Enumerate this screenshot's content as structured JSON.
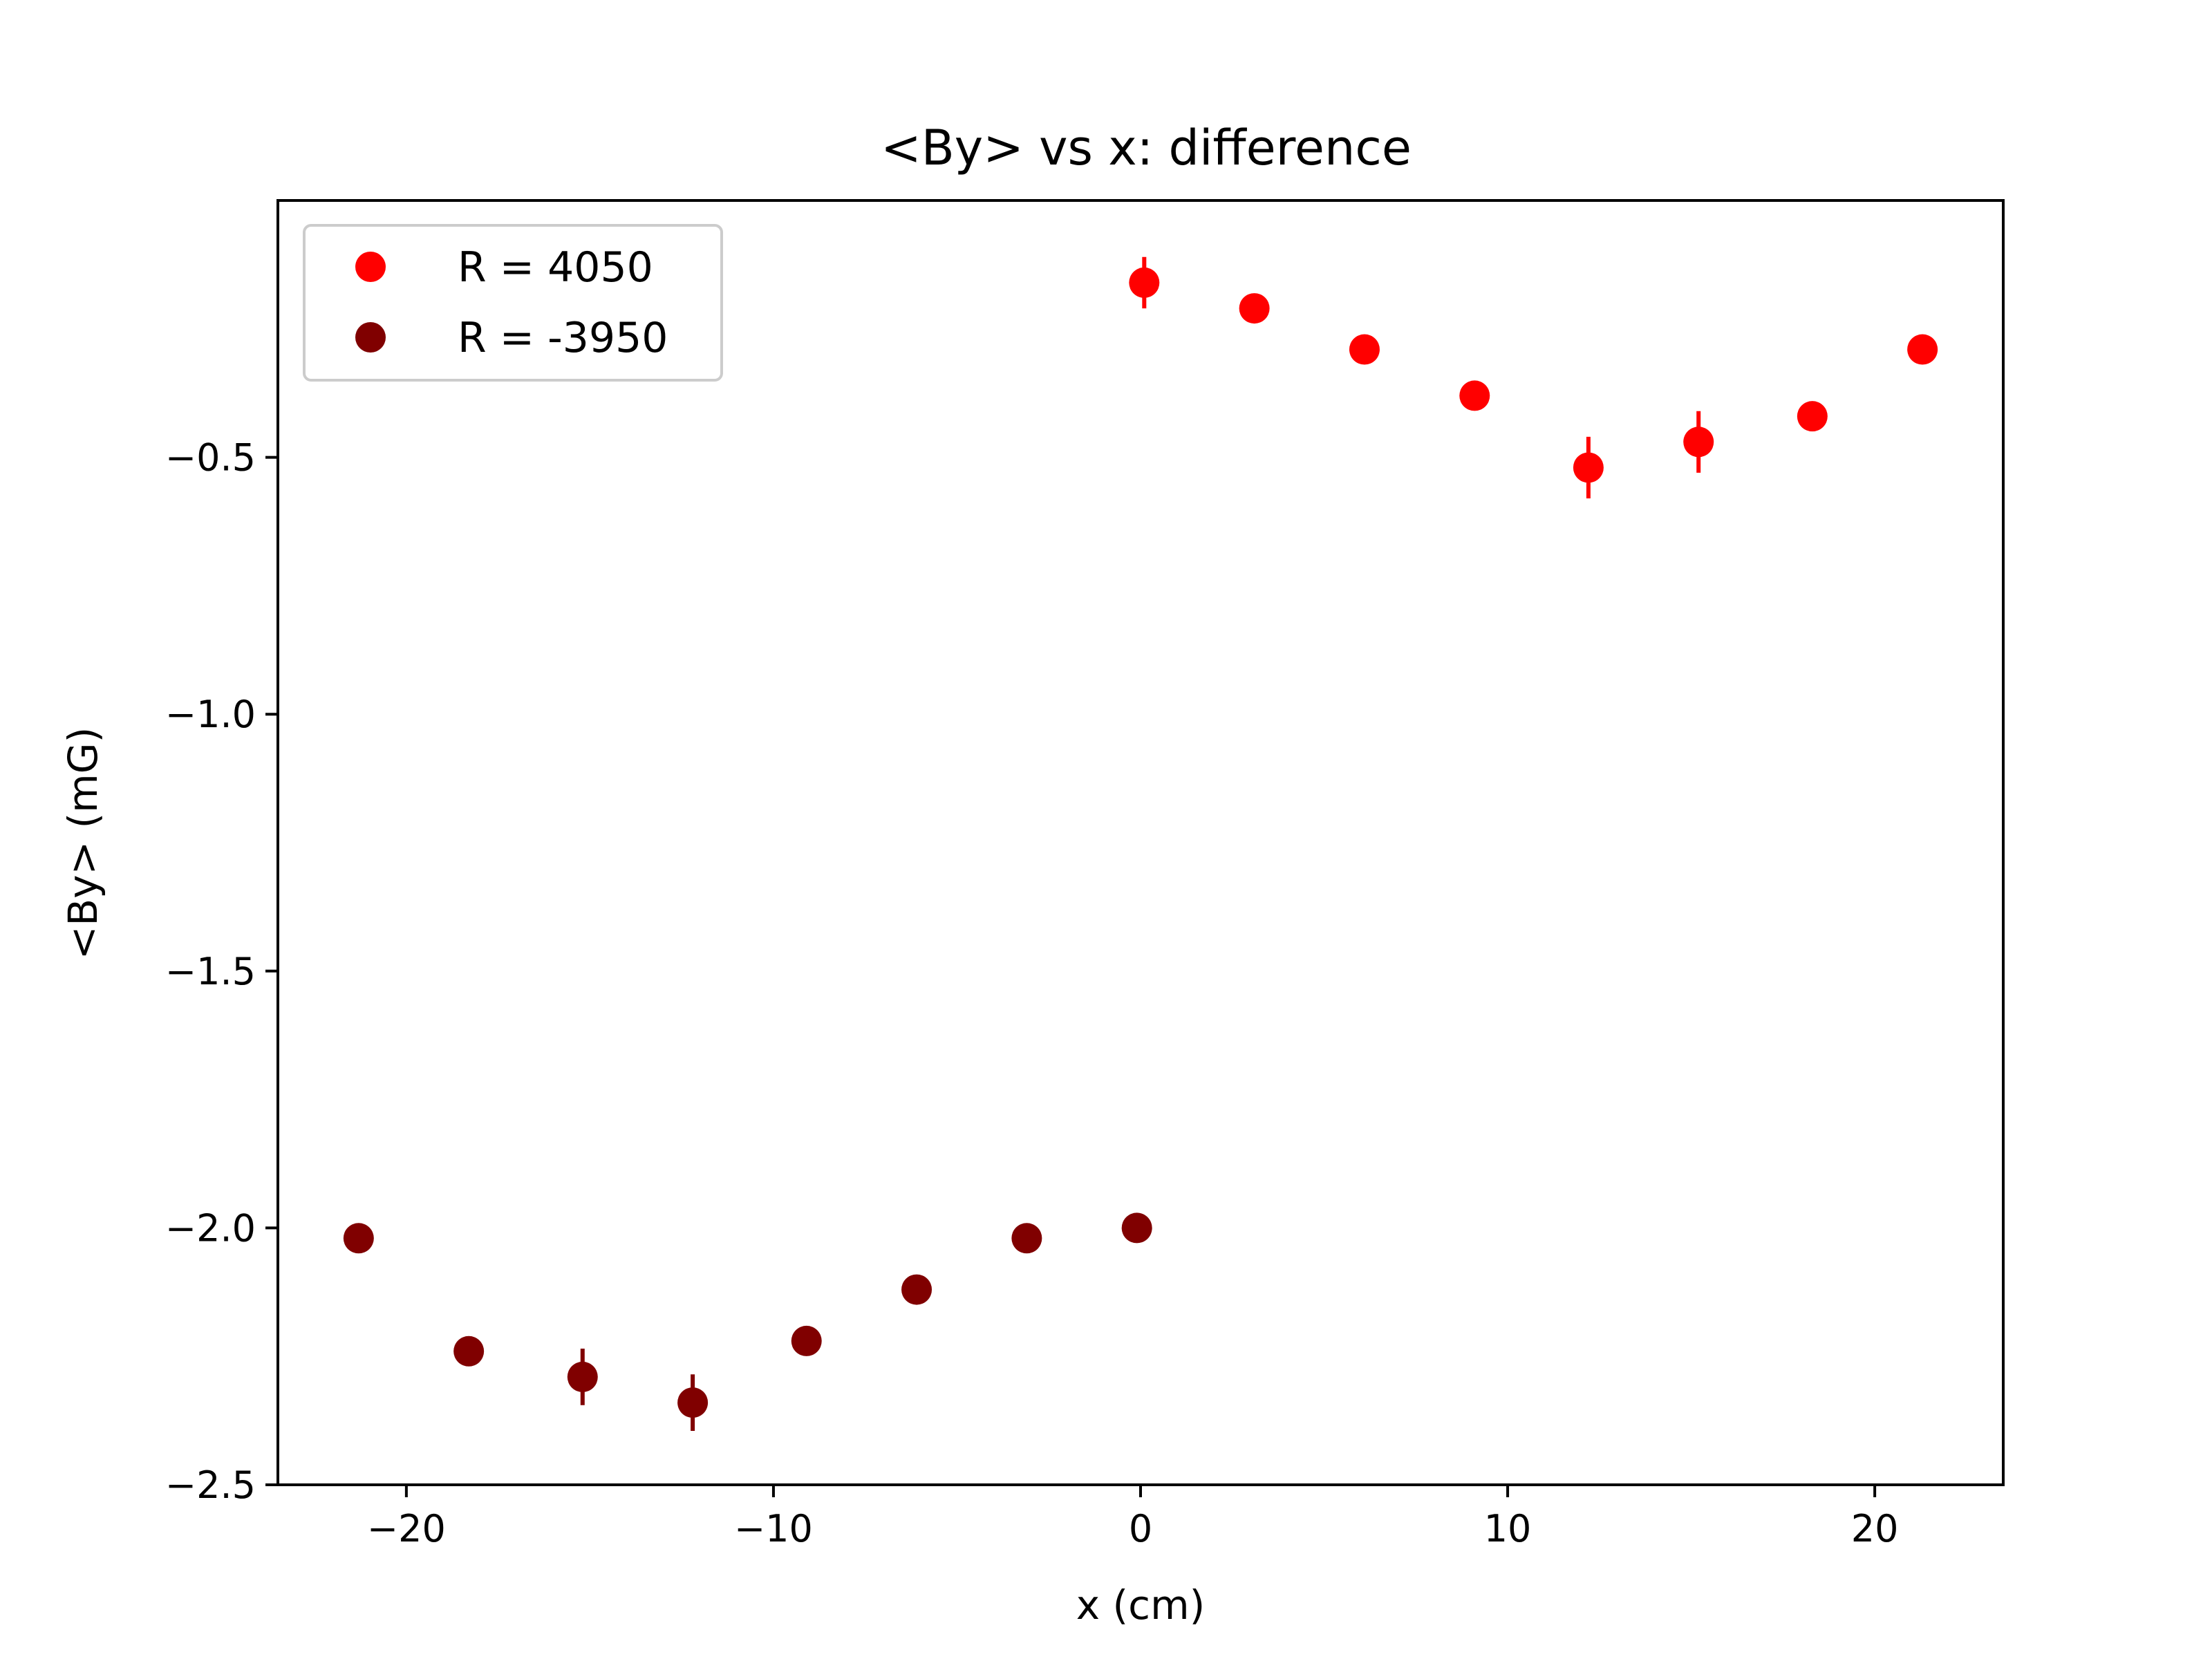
{
  "chart_data": {
    "type": "scatter",
    "title": "<By> vs x: difference",
    "xlabel": "x (cm)",
    "ylabel": "<By> (mG)",
    "xlim": [
      -23.5,
      23.5
    ],
    "ylim": [
      -2.5,
      0.0
    ],
    "xticks": [
      -20,
      -10,
      0,
      10,
      20
    ],
    "xtick_labels": [
      "−20",
      "−10",
      "0",
      "10",
      "20"
    ],
    "yticks": [
      -0.5,
      -1.0,
      -1.5,
      -2.0,
      -2.5
    ],
    "ytick_labels": [
      "−0.5",
      "−1.0",
      "−1.5",
      "−2.0",
      "−2.5"
    ],
    "grid": false,
    "legend_position": "top-left",
    "series": [
      {
        "name": "R = 4050",
        "color": "#ff0000",
        "points": [
          {
            "x": 0.1,
            "y": -0.16,
            "err": 0.05
          },
          {
            "x": 3.1,
            "y": -0.21,
            "err": 0.01
          },
          {
            "x": 6.1,
            "y": -0.29,
            "err": 0.01
          },
          {
            "x": 9.1,
            "y": -0.38,
            "err": 0.01
          },
          {
            "x": 12.2,
            "y": -0.52,
            "err": 0.06
          },
          {
            "x": 15.2,
            "y": -0.47,
            "err": 0.06
          },
          {
            "x": 18.3,
            "y": -0.42,
            "err": 0.02
          },
          {
            "x": 21.3,
            "y": -0.29,
            "err": 0.01
          }
        ]
      },
      {
        "name": "R = -3950",
        "color": "#800000",
        "points": [
          {
            "x": -21.3,
            "y": -2.02,
            "err": 0.01
          },
          {
            "x": -18.3,
            "y": -2.24,
            "err": 0.01
          },
          {
            "x": -15.2,
            "y": -2.29,
            "err": 0.055
          },
          {
            "x": -12.2,
            "y": -2.34,
            "err": 0.055
          },
          {
            "x": -9.1,
            "y": -2.22,
            "err": 0.01
          },
          {
            "x": -6.1,
            "y": -2.12,
            "err": 0.01
          },
          {
            "x": -3.1,
            "y": -2.02,
            "err": 0.01
          },
          {
            "x": -0.1,
            "y": -2.0,
            "err": 0.01
          }
        ]
      }
    ]
  }
}
